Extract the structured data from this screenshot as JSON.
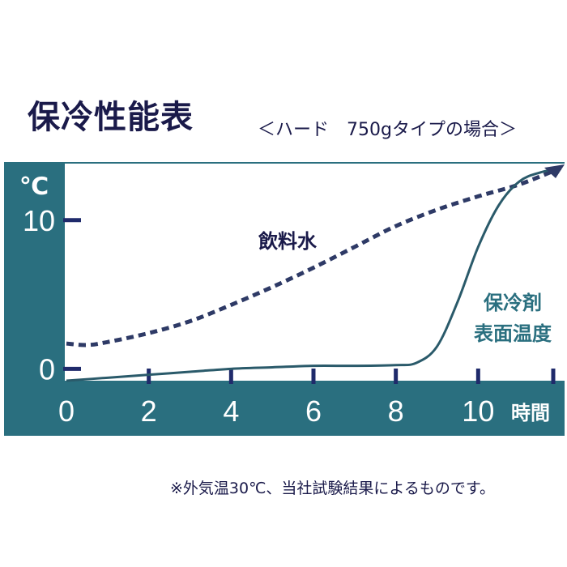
{
  "title": "保冷性能表",
  "subtitle": "＜ハード　750gタイプの場合＞",
  "note": "※外気温30℃、当社試験結果によるものです。",
  "colors": {
    "frame": "#2a6f7f",
    "text_dark": "#1a1a4a",
    "tick": "#1f2a6b",
    "series_water": "#2e3a66",
    "series_surface": "#2a5a6a",
    "label_surface": "#2a6f7f"
  },
  "chart_data": {
    "type": "line",
    "ylabel": "℃",
    "xlabel": "時間",
    "xlim": [
      0,
      12
    ],
    "ylim": [
      -0.8,
      13.8
    ],
    "x_ticks": [
      "0",
      "2",
      "4",
      "6",
      "8",
      "10"
    ],
    "y_ticks": [
      "0",
      "10"
    ],
    "series": [
      {
        "name": "飲料水",
        "style": "dashed",
        "x": [
          0,
          0.5,
          1,
          2,
          3,
          4,
          5,
          6,
          7,
          8,
          9,
          10,
          11,
          12
        ],
        "y": [
          1.7,
          1.6,
          1.8,
          2.4,
          3.2,
          4.3,
          5.5,
          6.8,
          8.2,
          9.6,
          10.7,
          11.6,
          12.4,
          13.5
        ]
      },
      {
        "name": "保冷剤\n表面温度",
        "label_lines": [
          "保冷剤",
          "表面温度"
        ],
        "style": "solid",
        "x": [
          0,
          1,
          2,
          3,
          4,
          5,
          6,
          7,
          8,
          8.5,
          9,
          9.5,
          10,
          10.5,
          11,
          11.5,
          12
        ],
        "y": [
          -0.8,
          -0.6,
          -0.4,
          -0.2,
          0.0,
          0.1,
          0.2,
          0.2,
          0.25,
          0.4,
          1.5,
          4.5,
          8.2,
          11.0,
          12.6,
          13.2,
          13.5
        ]
      }
    ],
    "grid": false
  }
}
